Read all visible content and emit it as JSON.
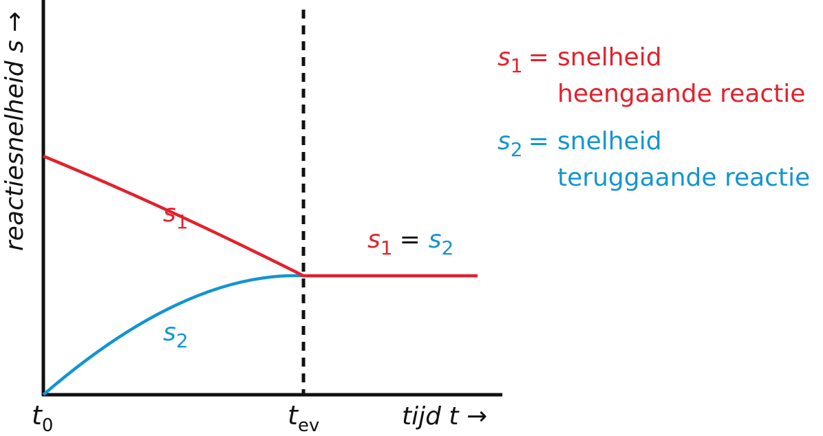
{
  "chart_data": {
    "type": "line",
    "title": "",
    "xlabel": "tijd t →",
    "ylabel": "reactiesnelheid s →",
    "x_ticks": [
      {
        "main": "t",
        "sub": "0"
      },
      {
        "main": "t",
        "sub": "ev"
      }
    ],
    "vertical_marker": {
      "at": "t_ev",
      "style": "dashed"
    },
    "series": [
      {
        "name": "s1",
        "color": "#e3202c",
        "trend": "decreasing to equilibrium, then constant"
      },
      {
        "name": "s2",
        "color": "#1395d0",
        "trend": "increasing to equilibrium, then constant"
      }
    ],
    "curve_labels": [
      {
        "main": "s",
        "sub": "1",
        "color": "#e3202c"
      },
      {
        "main": "s",
        "sub": "2",
        "color": "#1395d0"
      }
    ],
    "equality_label": {
      "left_main": "s",
      "left_sub": "1",
      "op": "=",
      "right_main": "s",
      "right_sub": "2"
    },
    "legend": [
      {
        "symbol_main": "s",
        "symbol_sub": "1",
        "eq": "=",
        "line1": "snelheid",
        "line2": "heengaande reactie",
        "color": "#e3202c"
      },
      {
        "symbol_main": "s",
        "symbol_sub": "2",
        "eq": "=",
        "line1": "snelheid",
        "line2": "teruggaande reactie",
        "color": "#1395d0"
      }
    ],
    "legend_placement": "right"
  }
}
